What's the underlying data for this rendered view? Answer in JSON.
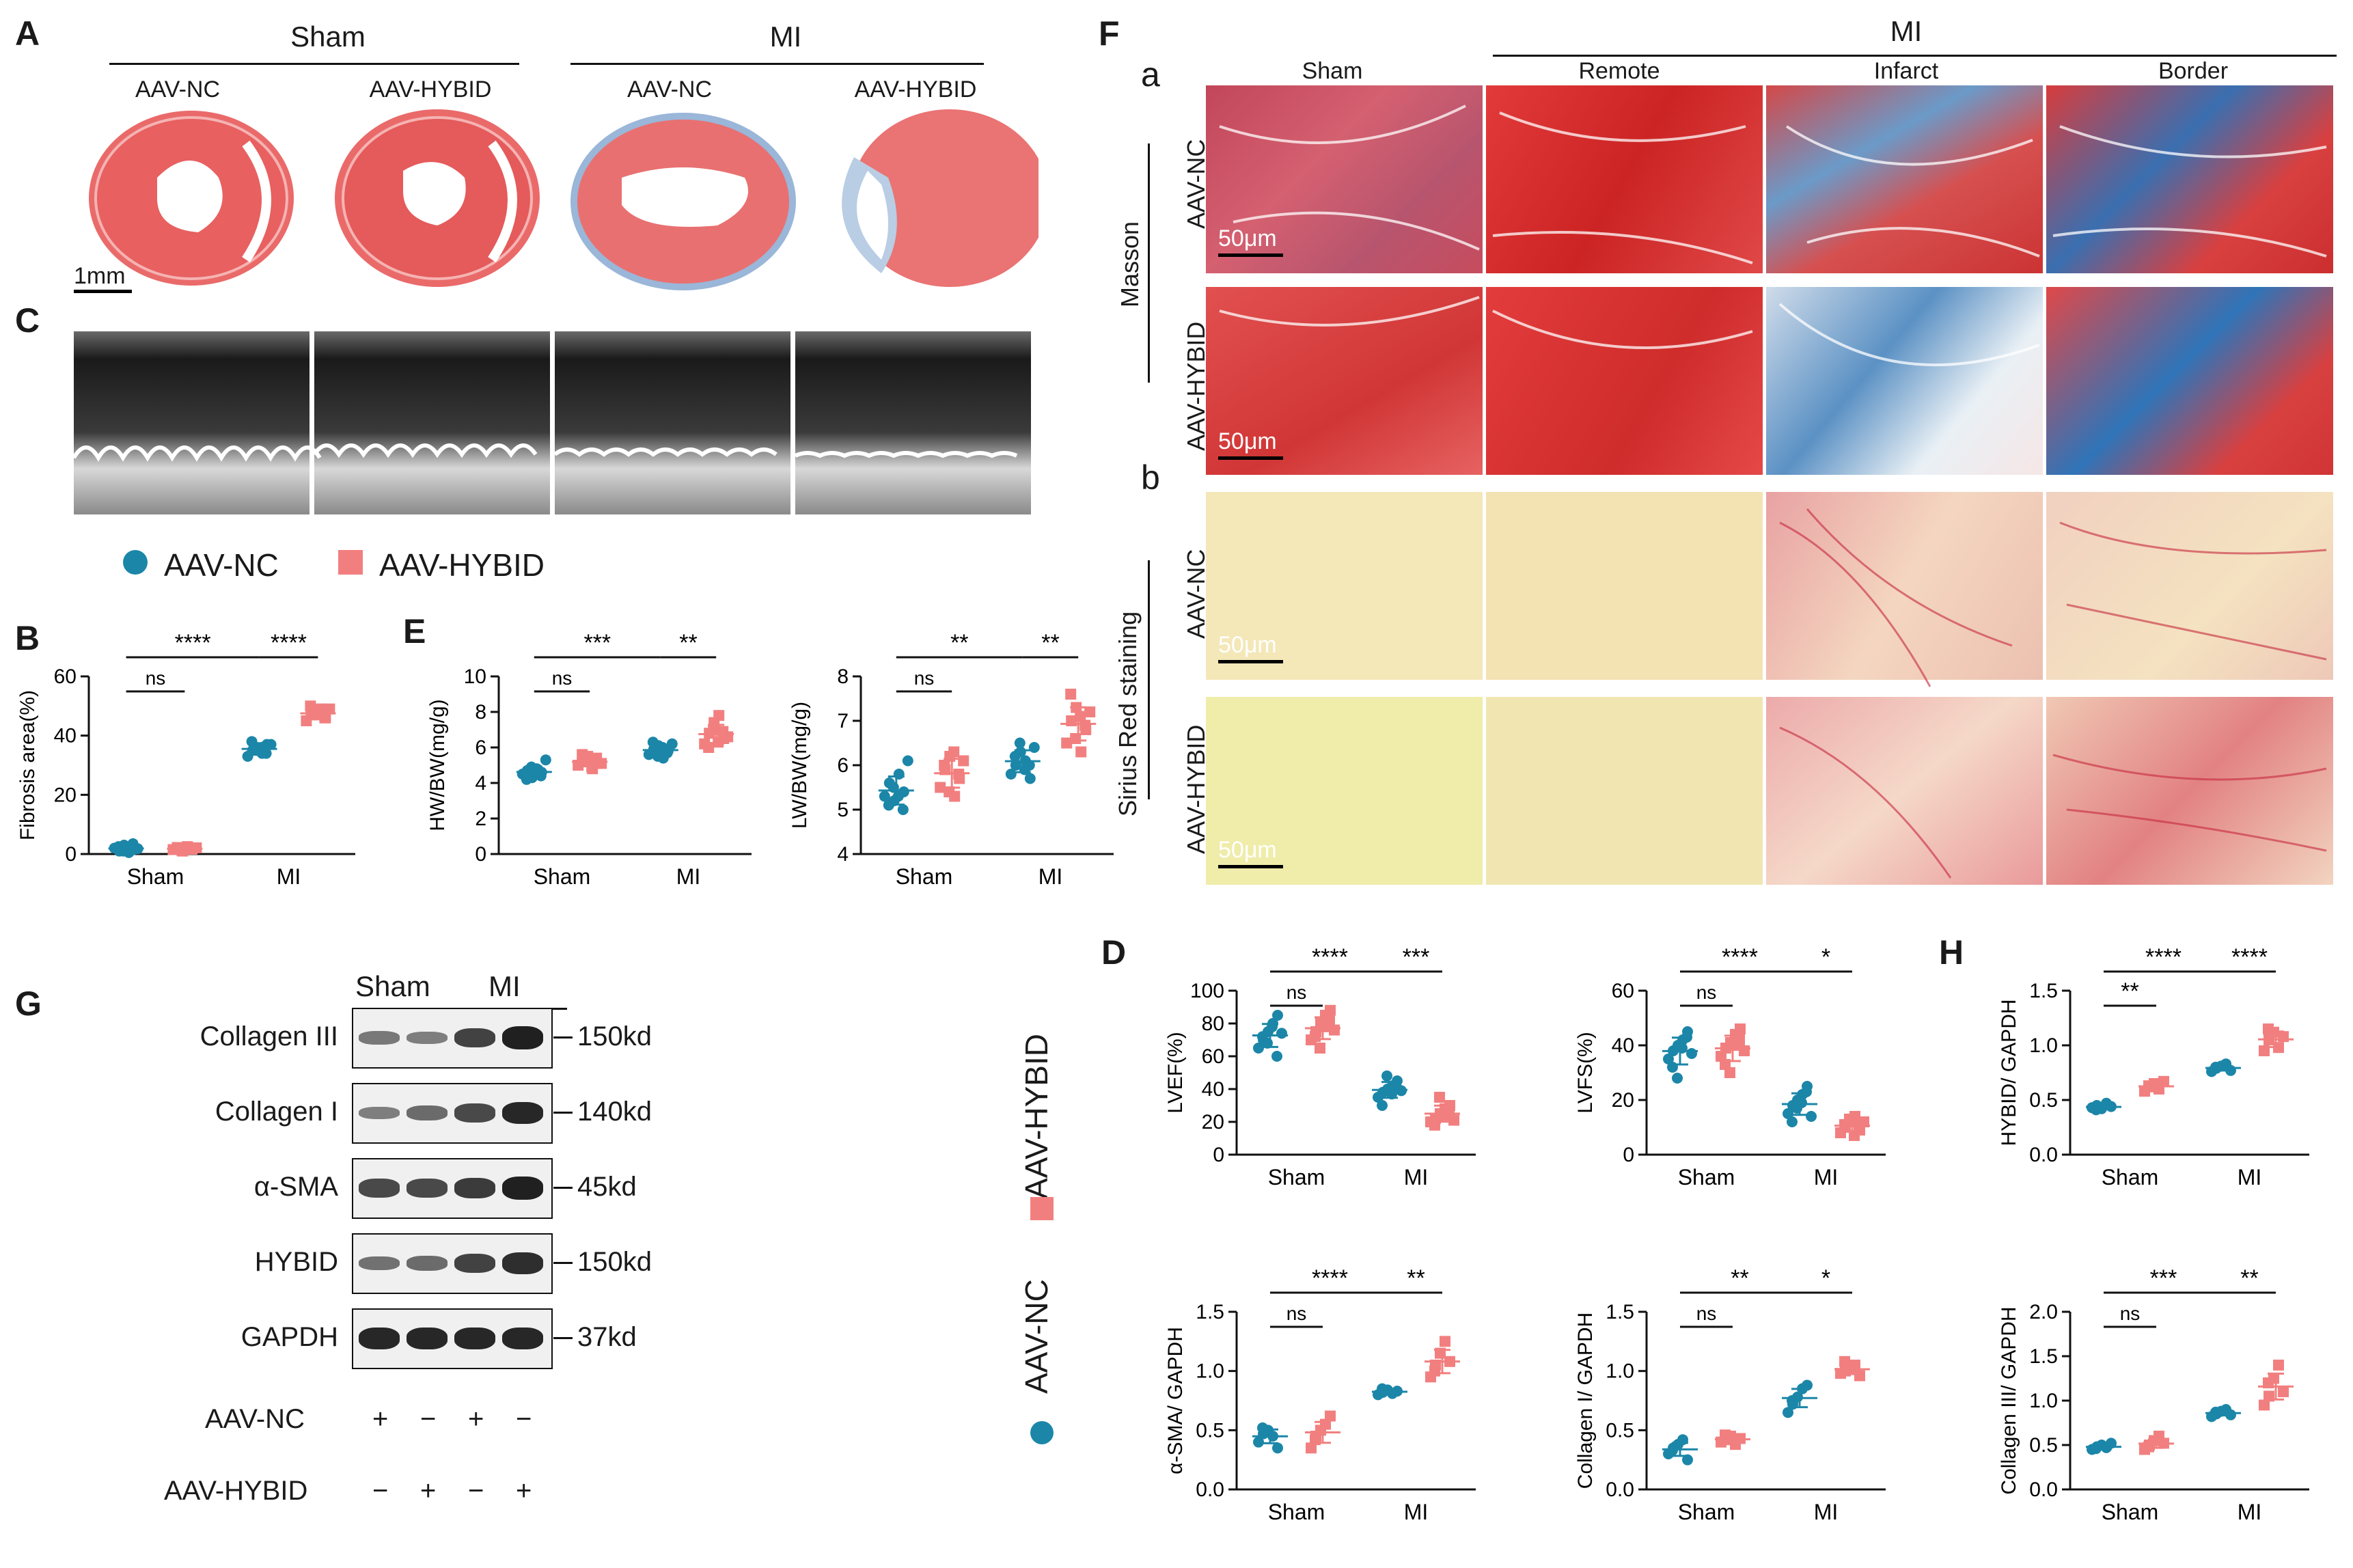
{
  "colors": {
    "nc": "#1b86a8",
    "hybid": "#f27f7f",
    "masson_red": "#d93333",
    "masson_blue": "#4a86c0",
    "sirius_bg": "#f4e6b4",
    "sirius_red": "#d9485b"
  },
  "panelA": {
    "label": "A",
    "group_sham": "Sham",
    "group_mi": "MI",
    "cols": [
      "AAV-NC",
      "AAV-HYBID",
      "AAV-NC",
      "AAV-HYBID"
    ],
    "scale": "1mm"
  },
  "panelC": {
    "label": "C"
  },
  "legend": {
    "nc": "AAV-NC",
    "hybid": "AAV-HYBID"
  },
  "panelF": {
    "label": "F",
    "mi_header": "MI",
    "col_headers": [
      "Sham",
      "Remote",
      "Infarct",
      "Border"
    ],
    "sub_a": "a",
    "sub_b": "b",
    "stain_masson": "Masson",
    "stain_sirius": "Sirius Red staining",
    "row_nc": "AAV-NC",
    "row_hybid": "AAV-HYBID",
    "scale": "50μm"
  },
  "panelG": {
    "label": "G",
    "hdr_sham": "Sham",
    "hdr_mi": "MI",
    "rows": [
      "Collagen III",
      "Collagen I",
      "α-SMA",
      "HYBID",
      "GAPDH"
    ],
    "kd": [
      "150kd",
      "140kd",
      "45kd",
      "150kd",
      "37kd"
    ],
    "nc_label": "AAV-NC",
    "hybid_label": "AAV-HYBID",
    "nc_signs": [
      "+",
      "−",
      "+",
      "−"
    ],
    "hybid_signs": [
      "−",
      "+",
      "−",
      "+"
    ],
    "band_intensity": [
      [
        0.35,
        0.3,
        0.75,
        1.0
      ],
      [
        0.3,
        0.45,
        0.7,
        0.95
      ],
      [
        0.7,
        0.7,
        0.8,
        1.0
      ],
      [
        0.4,
        0.45,
        0.75,
        0.9
      ],
      [
        0.95,
        0.95,
        0.95,
        0.95
      ]
    ],
    "vertical_hybid": "AAV-HYBID",
    "vertical_nc": "AAV-NC"
  },
  "chart_data": [
    {
      "id": "fib",
      "panel": "B",
      "type": "scatter",
      "ylabel": "Fibrosis area(%)",
      "ylim": [
        0,
        60
      ],
      "yticks": [
        "0",
        "20",
        "40",
        "60"
      ],
      "categories": [
        "Sham",
        "MI"
      ],
      "series": [
        {
          "name": "AAV-NC",
          "values": [
            [
              2,
              1,
              3,
              0.5,
              1.5,
              2.5,
              1,
              2,
              3.5,
              1.8
            ],
            [
              33,
              35,
              36,
              34,
              37,
              38,
              35,
              36,
              34,
              37
            ]
          ]
        },
        {
          "name": "AAV-HYBID",
          "values": [
            [
              1.5,
              2,
              1,
              2.5,
              1.8,
              2.2,
              1.2,
              2,
              1.6,
              2.1
            ],
            [
              45,
              47,
              48,
              49,
              46,
              50,
              47,
              48,
              46,
              49
            ]
          ]
        }
      ],
      "sig": [
        {
          "text": "****",
          "level": 0,
          "from": [
            0,
            0
          ],
          "to": [
            1,
            0
          ]
        },
        {
          "text": "ns",
          "level": 1,
          "from": [
            0,
            0
          ],
          "to": [
            0,
            1
          ]
        },
        {
          "text": "****",
          "level": 0,
          "from": [
            1,
            0
          ],
          "to": [
            1,
            1
          ]
        }
      ]
    },
    {
      "id": "hw",
      "panel": "E",
      "type": "scatter",
      "ylabel": "HW/BW(mg/g)",
      "ylim": [
        0,
        10
      ],
      "yticks": [
        "0",
        "2",
        "4",
        "6",
        "8",
        "10"
      ],
      "categories": [
        "Sham",
        "MI"
      ],
      "series": [
        {
          "name": "AAV-NC",
          "values": [
            [
              4.5,
              4.7,
              4.3,
              4.8,
              4.6,
              4.2,
              4.9,
              4.5,
              4.4,
              5.3
            ],
            [
              5.6,
              5.9,
              6.1,
              5.4,
              5.8,
              6.3,
              5.5,
              6.0,
              5.7,
              6.2
            ]
          ]
        },
        {
          "name": "AAV-HYBID",
          "values": [
            [
              5.0,
              5.3,
              5.5,
              4.8,
              5.1,
              5.6,
              5.2,
              4.9,
              5.4,
              5.1
            ],
            [
              6.2,
              6.8,
              7.4,
              7.8,
              6.5,
              6.0,
              7.0,
              6.3,
              6.9,
              6.6
            ]
          ]
        }
      ],
      "sig": [
        {
          "text": "***",
          "level": 0,
          "from": [
            0,
            0
          ],
          "to": [
            1,
            0
          ]
        },
        {
          "text": "ns",
          "level": 1,
          "from": [
            0,
            0
          ],
          "to": [
            0,
            1
          ]
        },
        {
          "text": "**",
          "level": 0,
          "from": [
            1,
            0
          ],
          "to": [
            1,
            1
          ]
        }
      ]
    },
    {
      "id": "lw",
      "panel": "",
      "type": "scatter",
      "ylabel": "LW/BW(mg/g)",
      "ylim": [
        4,
        8
      ],
      "yticks": [
        "4",
        "5",
        "6",
        "7",
        "8"
      ],
      "categories": [
        "Sham",
        "MI"
      ],
      "series": [
        {
          "name": "AAV-NC",
          "values": [
            [
              5.3,
              5.6,
              5.2,
              5.8,
              5.4,
              5.1,
              5.5,
              5.3,
              5.0,
              6.1
            ],
            [
              5.8,
              6.0,
              6.3,
              6.1,
              5.7,
              6.2,
              6.5,
              5.9,
              6.0,
              6.4
            ]
          ]
        },
        {
          "name": "AAV-HYBID",
          "values": [
            [
              5.5,
              5.9,
              6.2,
              5.3,
              5.7,
              6.0,
              5.4,
              6.3,
              5.8,
              6.1
            ],
            [
              6.5,
              7.0,
              7.3,
              6.3,
              6.8,
              7.6,
              6.6,
              7.1,
              6.9,
              7.2
            ]
          ]
        }
      ],
      "sig": [
        {
          "text": "**",
          "level": 0,
          "from": [
            0,
            0
          ],
          "to": [
            1,
            0
          ]
        },
        {
          "text": "ns",
          "level": 1,
          "from": [
            0,
            0
          ],
          "to": [
            0,
            1
          ]
        },
        {
          "text": "**",
          "level": 0,
          "from": [
            1,
            0
          ],
          "to": [
            1,
            1
          ]
        }
      ]
    },
    {
      "id": "lvef",
      "panel": "D",
      "type": "scatter",
      "ylabel": "LVEF(%)",
      "ylim": [
        0,
        100
      ],
      "yticks": [
        "0",
        "20",
        "40",
        "60",
        "80",
        "100"
      ],
      "categories": [
        "Sham",
        "MI"
      ],
      "series": [
        {
          "name": "AAV-NC",
          "values": [
            [
              65,
              70,
              75,
              80,
              85,
              72,
              68,
              78,
              60,
              74
            ],
            [
              35,
              38,
              40,
              42,
              45,
              30,
              48,
              37,
              41,
              39
            ]
          ]
        },
        {
          "name": "AAV-HYBID",
          "values": [
            [
              70,
              75,
              80,
              85,
              88,
              72,
              65,
              78,
              82,
              76
            ],
            [
              20,
              22,
              25,
              28,
              30,
              18,
              35,
              24,
              27,
              21
            ]
          ]
        }
      ],
      "sig": [
        {
          "text": "****",
          "level": 0,
          "from": [
            0,
            0
          ],
          "to": [
            1,
            0
          ]
        },
        {
          "text": "ns",
          "level": 1,
          "from": [
            0,
            0
          ],
          "to": [
            0,
            1
          ]
        },
        {
          "text": "***",
          "level": 0,
          "from": [
            1,
            0
          ],
          "to": [
            1,
            1
          ]
        }
      ]
    },
    {
      "id": "lvfs",
      "panel": "",
      "type": "scatter",
      "ylabel": "LVFS(%)",
      "ylim": [
        0,
        60
      ],
      "yticks": [
        "0",
        "20",
        "40",
        "60"
      ],
      "categories": [
        "Sham",
        "MI"
      ],
      "series": [
        {
          "name": "AAV-NC",
          "values": [
            [
              35,
              38,
              40,
              42,
              45,
              32,
              28,
              39,
              43,
              37
            ],
            [
              15,
              18,
              20,
              22,
              25,
              12,
              17,
              19,
              23,
              14
            ]
          ]
        },
        {
          "name": "AAV-HYBID",
          "values": [
            [
              36,
              39,
              41,
              44,
              46,
              33,
              30,
              40,
              42,
              38
            ],
            [
              8,
              10,
              12,
              14,
              9,
              11,
              13,
              7,
              10,
              12
            ]
          ]
        }
      ],
      "sig": [
        {
          "text": "****",
          "level": 0,
          "from": [
            0,
            0
          ],
          "to": [
            1,
            0
          ]
        },
        {
          "text": "ns",
          "level": 1,
          "from": [
            0,
            0
          ],
          "to": [
            0,
            1
          ]
        },
        {
          "text": "*",
          "level": 0,
          "from": [
            1,
            0
          ],
          "to": [
            1,
            1
          ]
        }
      ]
    },
    {
      "id": "hybid",
      "panel": "H",
      "type": "scatter",
      "ylabel": "HYBID/ GAPDH",
      "ylim": [
        0,
        1.5
      ],
      "yticks": [
        "0.0",
        "0.5",
        "1.0",
        "1.5"
      ],
      "categories": [
        "Sham",
        "MI"
      ],
      "series": [
        {
          "name": "AAV-NC",
          "values": [
            [
              0.43,
              0.45,
              0.42,
              0.47,
              0.44,
              0.41
            ],
            [
              0.76,
              0.79,
              0.81,
              0.83,
              0.77,
              0.8
            ]
          ]
        },
        {
          "name": "AAV-HYBID",
          "values": [
            [
              0.58,
              0.62,
              0.65,
              0.6,
              0.67,
              0.63
            ],
            [
              0.95,
              1.05,
              1.12,
              0.98,
              1.08,
              1.15
            ]
          ]
        }
      ],
      "sig": [
        {
          "text": "****",
          "level": 0,
          "from": [
            0,
            0
          ],
          "to": [
            1,
            0
          ]
        },
        {
          "text": "**",
          "level": 1,
          "from": [
            0,
            0
          ],
          "to": [
            0,
            1
          ]
        },
        {
          "text": "****",
          "level": 0,
          "from": [
            1,
            0
          ],
          "to": [
            1,
            1
          ]
        }
      ]
    },
    {
      "id": "asma",
      "panel": "",
      "type": "scatter",
      "ylabel": "α-SMA/ GAPDH",
      "ylim": [
        0,
        1.5
      ],
      "yticks": [
        "0.0",
        "0.5",
        "1.0",
        "1.5"
      ],
      "categories": [
        "Sham",
        "MI"
      ],
      "series": [
        {
          "name": "AAV-NC",
          "values": [
            [
              0.4,
              0.47,
              0.5,
              0.45,
              0.35,
              0.52
            ],
            [
              0.8,
              0.82,
              0.84,
              0.81,
              0.83,
              0.85
            ]
          ]
        },
        {
          "name": "AAV-HYBID",
          "values": [
            [
              0.35,
              0.45,
              0.5,
              0.55,
              0.62,
              0.42
            ],
            [
              0.95,
              1.05,
              1.15,
              1.25,
              1.08,
              1.0
            ]
          ]
        }
      ],
      "sig": [
        {
          "text": "****",
          "level": 0,
          "from": [
            0,
            0
          ],
          "to": [
            1,
            0
          ]
        },
        {
          "text": "ns",
          "level": 1,
          "from": [
            0,
            0
          ],
          "to": [
            0,
            1
          ]
        },
        {
          "text": "**",
          "level": 0,
          "from": [
            1,
            0
          ],
          "to": [
            1,
            1
          ]
        }
      ]
    },
    {
      "id": "col1",
      "panel": "",
      "type": "scatter",
      "ylabel": "Collagen I/ GAPDH",
      "ylim": [
        0,
        1.5
      ],
      "yticks": [
        "0.0",
        "0.5",
        "1.0",
        "1.5"
      ],
      "categories": [
        "Sham",
        "MI"
      ],
      "series": [
        {
          "name": "AAV-NC",
          "values": [
            [
              0.3,
              0.35,
              0.38,
              0.42,
              0.25,
              0.33
            ],
            [
              0.65,
              0.72,
              0.78,
              0.85,
              0.88,
              0.75
            ]
          ]
        },
        {
          "name": "AAV-HYBID",
          "values": [
            [
              0.4,
              0.42,
              0.45,
              0.38,
              0.43,
              0.46
            ],
            [
              0.98,
              1.0,
              1.02,
              1.05,
              0.96,
              1.08
            ]
          ]
        }
      ],
      "sig": [
        {
          "text": "**",
          "level": 0,
          "from": [
            0,
            0
          ],
          "to": [
            1,
            0
          ]
        },
        {
          "text": "ns",
          "level": 1,
          "from": [
            0,
            0
          ],
          "to": [
            0,
            1
          ]
        },
        {
          "text": "*",
          "level": 0,
          "from": [
            1,
            0
          ],
          "to": [
            1,
            1
          ]
        }
      ]
    },
    {
      "id": "col3",
      "panel": "",
      "type": "scatter",
      "ylabel": "Collagen III/ GAPDH",
      "ylim": [
        0,
        2.0
      ],
      "yticks": [
        "0.0",
        "0.5",
        "1.0",
        "1.5",
        "2.0"
      ],
      "categories": [
        "Sham",
        "MI"
      ],
      "series": [
        {
          "name": "AAV-NC",
          "values": [
            [
              0.45,
              0.48,
              0.5,
              0.47,
              0.52,
              0.46
            ],
            [
              0.82,
              0.85,
              0.88,
              0.9,
              0.84,
              0.87
            ]
          ]
        },
        {
          "name": "AAV-HYBID",
          "values": [
            [
              0.45,
              0.5,
              0.55,
              0.6,
              0.52,
              0.48
            ],
            [
              0.95,
              1.05,
              1.25,
              1.4,
              1.1,
              1.2
            ]
          ]
        }
      ],
      "sig": [
        {
          "text": "***",
          "level": 0,
          "from": [
            0,
            0
          ],
          "to": [
            1,
            0
          ]
        },
        {
          "text": "ns",
          "level": 1,
          "from": [
            0,
            0
          ],
          "to": [
            0,
            1
          ]
        },
        {
          "text": "**",
          "level": 0,
          "from": [
            1,
            0
          ],
          "to": [
            1,
            1
          ]
        }
      ]
    }
  ]
}
